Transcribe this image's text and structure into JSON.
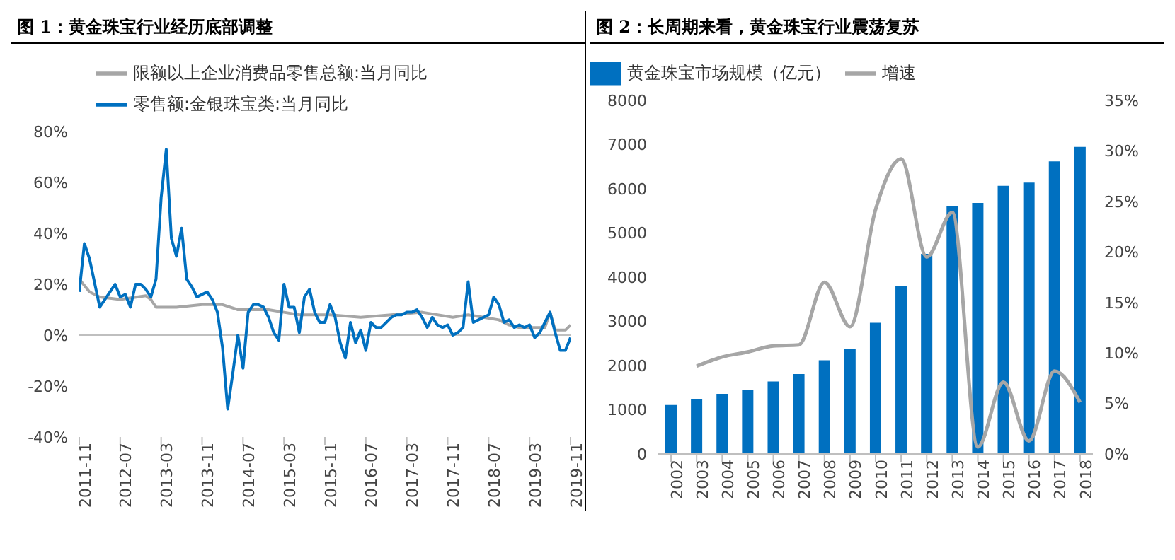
{
  "chart_data": [
    {
      "type": "line",
      "title": "图 1：黄金珠宝行业经历底部调整",
      "legend": "top left",
      "xlim": [
        "2011-11",
        "2019-11"
      ],
      "xticks": [
        "2011-11",
        "2012-07",
        "2013-03",
        "2013-11",
        "2014-07",
        "2015-03",
        "2015-11",
        "2016-07",
        "2017-03",
        "2017-11",
        "2018-07",
        "2019-03",
        "2019-11"
      ],
      "ylim": [
        -40,
        80
      ],
      "yticks": [
        {
          "value": -40,
          "label": "-40%"
        },
        {
          "value": -20,
          "label": "-20%"
        },
        {
          "value": 0,
          "label": "0%"
        },
        {
          "value": 20,
          "label": "20%"
        },
        {
          "value": 40,
          "label": "40%"
        },
        {
          "value": 60,
          "label": "60%"
        },
        {
          "value": 80,
          "label": "80%"
        }
      ],
      "series": [
        {
          "name": "限额以上企业消费品零售总额:当月同比",
          "color": "#a6a6a6",
          "x": [
            "2011-11",
            "2012-01",
            "2012-03",
            "2012-07",
            "2012-12",
            "2013-01",
            "2013-02",
            "2013-06",
            "2013-11",
            "2014-03",
            "2014-06",
            "2014-12",
            "2015-03",
            "2015-06",
            "2015-12",
            "2016-06",
            "2016-12",
            "2017-06",
            "2017-12",
            "2018-03",
            "2018-06",
            "2018-09",
            "2018-11",
            "2019-01",
            "2019-04",
            "2019-06",
            "2019-07",
            "2019-08",
            "2019-10",
            "2019-11"
          ],
          "values": [
            22,
            17,
            15,
            14,
            15.5,
            14,
            11,
            11,
            12,
            12,
            10,
            10,
            9,
            8,
            8,
            7,
            8,
            9,
            7,
            8,
            7,
            6,
            4,
            3,
            3,
            3,
            9,
            2,
            2,
            4
          ]
        },
        {
          "name": "零售额:金银珠宝类:当月同比",
          "color": "#0070c0",
          "x": [
            "2011-11",
            "2011-12",
            "2012-01",
            "2012-03",
            "2012-05",
            "2012-06",
            "2012-07",
            "2012-08",
            "2012-09",
            "2012-10",
            "2012-11",
            "2012-12",
            "2013-01",
            "2013-02",
            "2013-03",
            "2013-04",
            "2013-05",
            "2013-06",
            "2013-07",
            "2013-08",
            "2013-09",
            "2013-10",
            "2013-11",
            "2013-12",
            "2014-01",
            "2014-02",
            "2014-03",
            "2014-04",
            "2014-05",
            "2014-06",
            "2014-07",
            "2014-08",
            "2014-09",
            "2014-10",
            "2014-11",
            "2014-12",
            "2015-01",
            "2015-02",
            "2015-03",
            "2015-04",
            "2015-05",
            "2015-06",
            "2015-07",
            "2015-08",
            "2015-09",
            "2015-10",
            "2015-11",
            "2015-12",
            "2016-01",
            "2016-02",
            "2016-03",
            "2016-04",
            "2016-05",
            "2016-06",
            "2016-07",
            "2016-08",
            "2016-09",
            "2016-10",
            "2016-11",
            "2016-12",
            "2017-01",
            "2017-02",
            "2017-03",
            "2017-04",
            "2017-05",
            "2017-06",
            "2017-07",
            "2017-08",
            "2017-09",
            "2017-10",
            "2017-11",
            "2017-12",
            "2018-01",
            "2018-02",
            "2018-03",
            "2018-04",
            "2018-05",
            "2018-06",
            "2018-07",
            "2018-08",
            "2018-09",
            "2018-10",
            "2018-11",
            "2018-12",
            "2019-01",
            "2019-02",
            "2019-03",
            "2019-04",
            "2019-05",
            "2019-06",
            "2019-07",
            "2019-08",
            "2019-09",
            "2019-10",
            "2019-11"
          ],
          "values": [
            17,
            36,
            30,
            11,
            17,
            20,
            15,
            16,
            11,
            20,
            20,
            18,
            15,
            22,
            54,
            73,
            38,
            31,
            42,
            22,
            19,
            15,
            16,
            17,
            14,
            9,
            -5,
            -29,
            -15,
            0,
            -13,
            9,
            12,
            12,
            11,
            7,
            1,
            -2,
            20,
            11,
            11,
            1,
            15,
            18,
            9,
            5,
            5,
            12,
            7,
            -3,
            -9,
            5,
            -3,
            2,
            -6,
            5,
            3,
            3,
            5,
            7,
            8,
            8,
            9,
            9,
            10,
            7,
            3,
            7,
            4,
            3,
            4,
            0,
            1,
            3,
            21,
            5,
            6,
            7,
            8,
            15,
            12,
            5,
            6,
            3,
            4,
            3,
            4,
            -1,
            1,
            5,
            9,
            1,
            -6,
            -6,
            -1
          ]
        }
      ]
    },
    {
      "type": "bar",
      "title": "图 2：长周期来看，黄金珠宝行业震荡复苏",
      "legend": "top",
      "categories": [
        "2002",
        "2003",
        "2004",
        "2005",
        "2006",
        "2007",
        "2008",
        "2009",
        "2010",
        "2011",
        "2012",
        "2013",
        "2014",
        "2015",
        "2016",
        "2017",
        "2018"
      ],
      "ylim": [
        0,
        8000
      ],
      "yticks": [
        0,
        1000,
        2000,
        3000,
        4000,
        5000,
        6000,
        7000,
        8000
      ],
      "y2lim": [
        0,
        35
      ],
      "y2ticks": [
        {
          "value": 0,
          "label": "0%"
        },
        {
          "value": 5,
          "label": "5%"
        },
        {
          "value": 10,
          "label": "10%"
        },
        {
          "value": 15,
          "label": "15%"
        },
        {
          "value": 20,
          "label": "20%"
        },
        {
          "value": 25,
          "label": "25%"
        },
        {
          "value": 30,
          "label": "30%"
        },
        {
          "value": 35,
          "label": "35%"
        }
      ],
      "series": [
        {
          "name": "黄金珠宝市场规模（亿元）",
          "color": "#0070c0",
          "values": [
            1110,
            1240,
            1360,
            1450,
            1640,
            1810,
            2120,
            2380,
            2970,
            3800,
            4530,
            5600,
            5680,
            6070,
            6140,
            6620,
            6950
          ]
        },
        {
          "name": "增速",
          "type": "line",
          "axis": "y2",
          "color": "#a6a6a6",
          "values": [
            null,
            8.7,
            9.6,
            10.1,
            10.7,
            10.8,
            17.0,
            12.6,
            24.2,
            29.2,
            19.5,
            23.9,
            0.7,
            7.1,
            1.3,
            8.2,
            5.1
          ]
        }
      ]
    }
  ]
}
